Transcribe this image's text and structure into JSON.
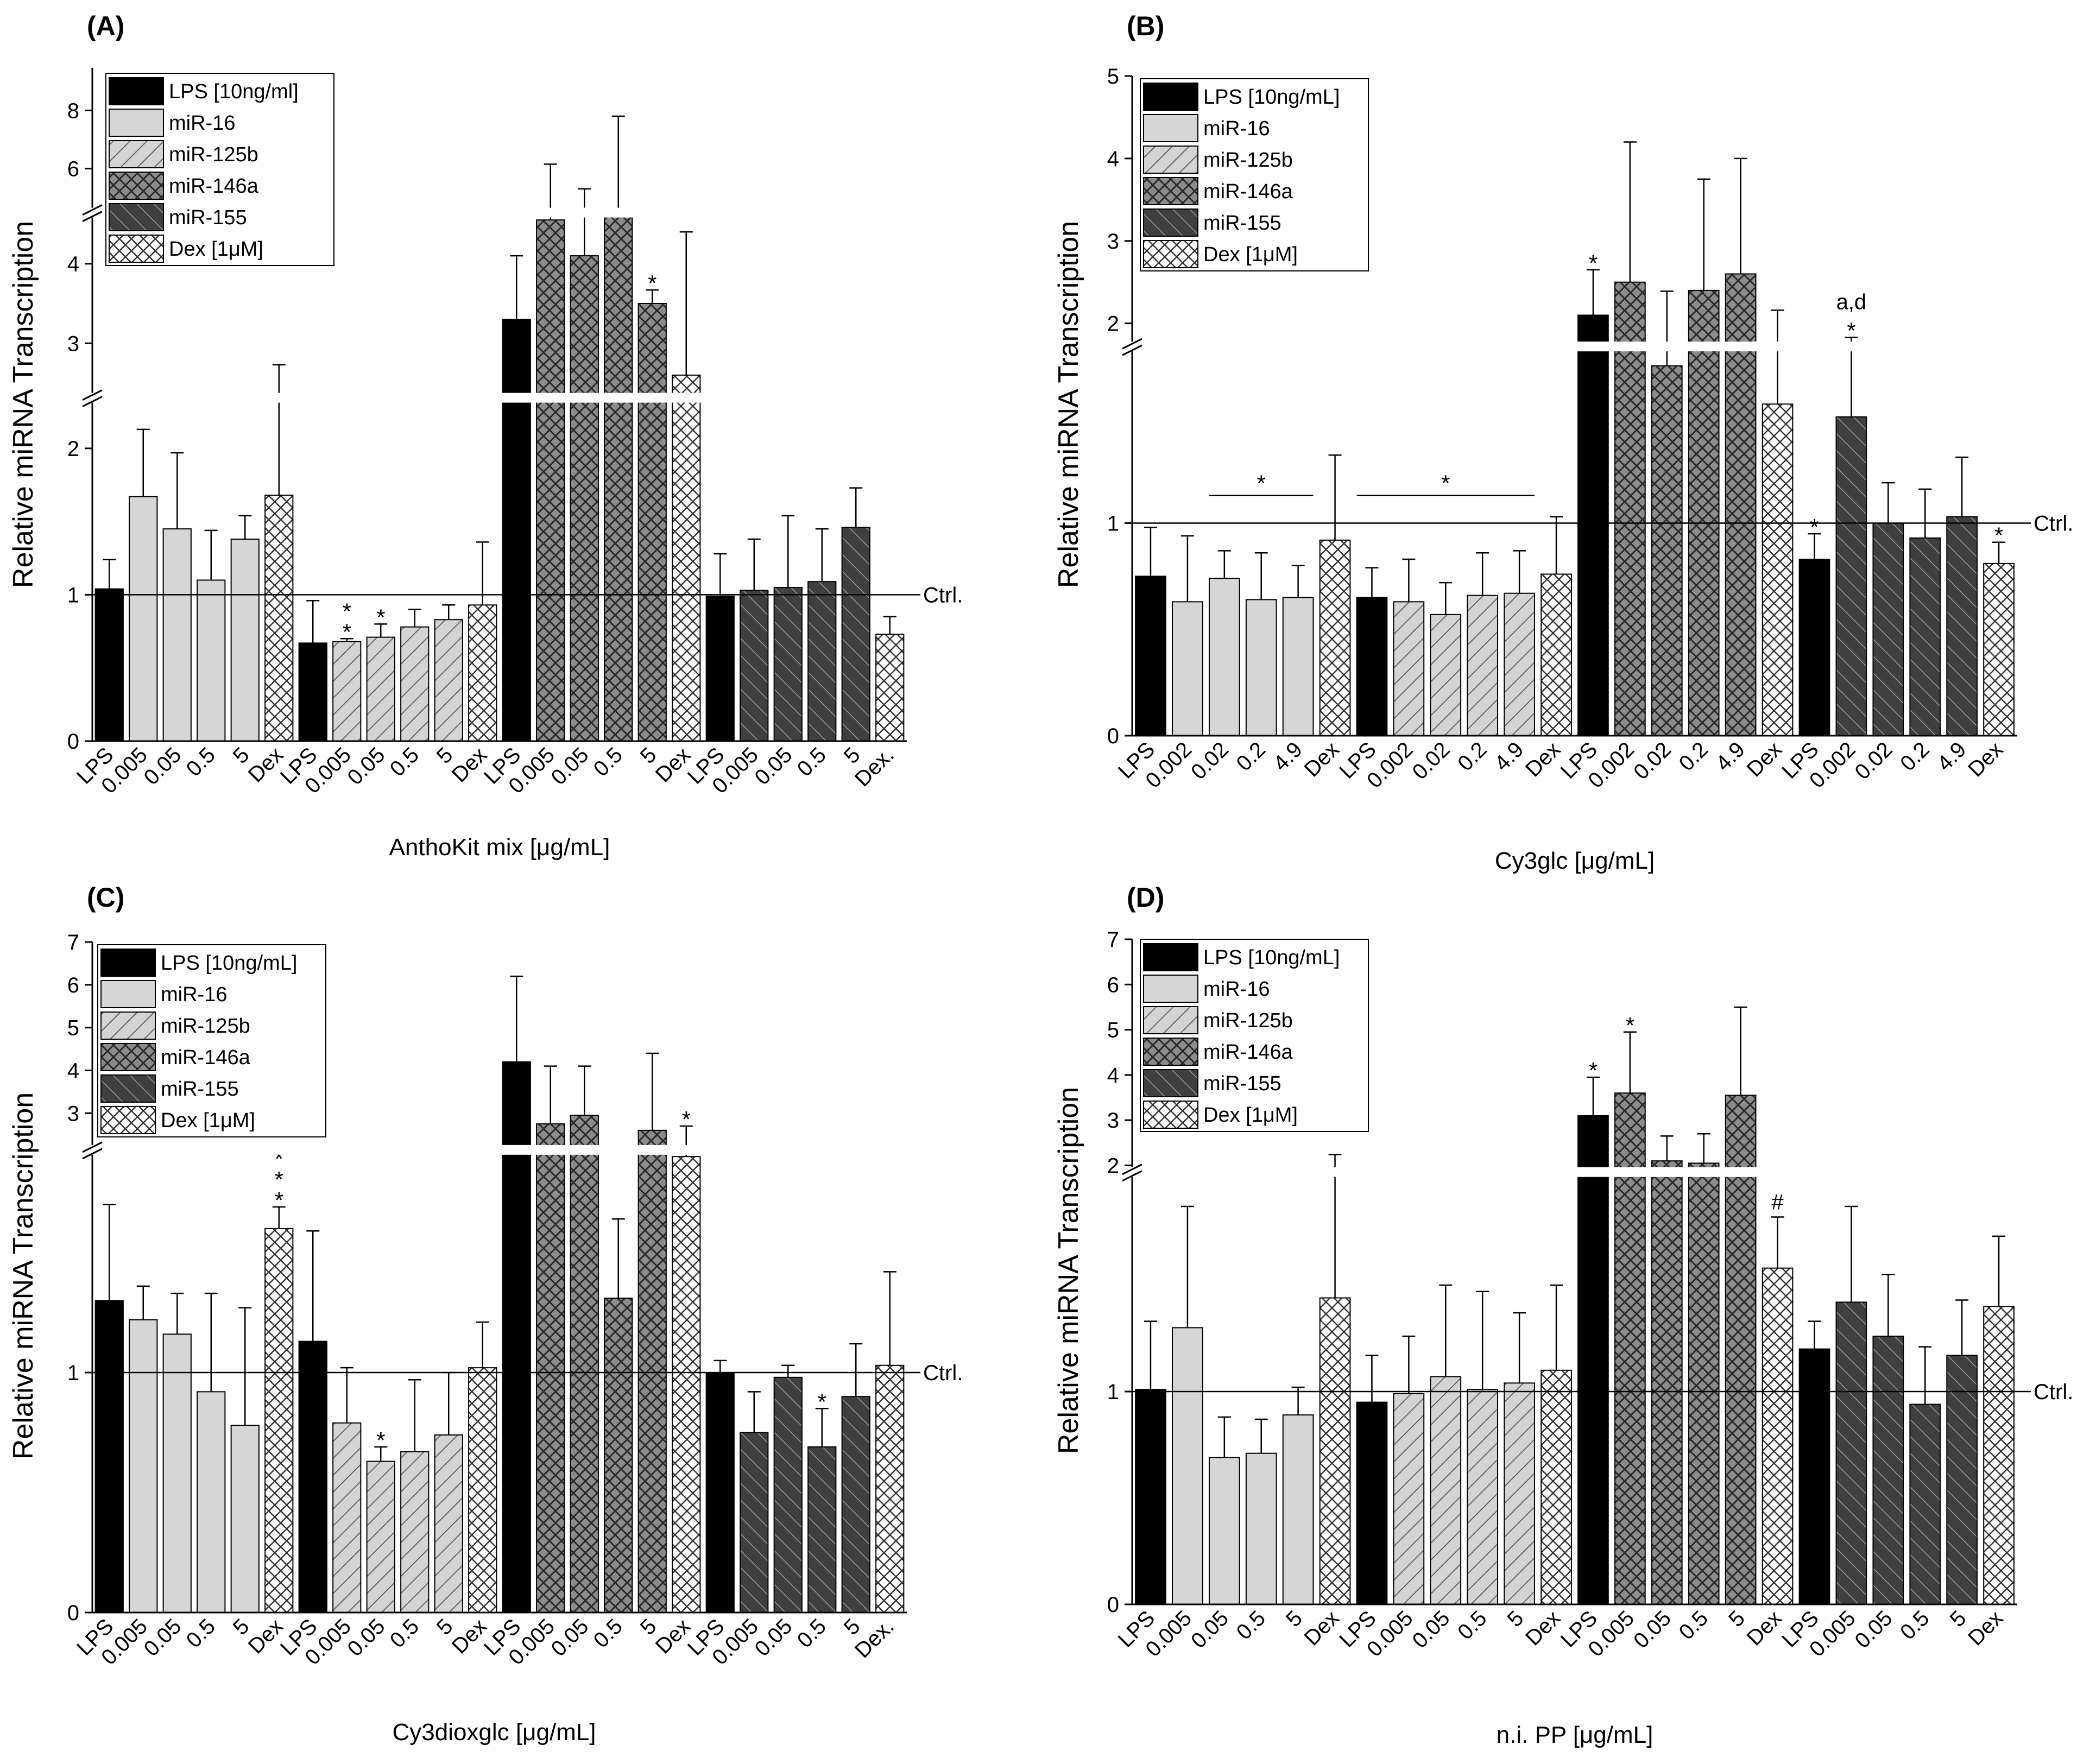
{
  "figure": {
    "legend_labels_panel_A": [
      "LPS [10ng/ml]",
      "miR-16",
      "miR-125b",
      "miR-146a",
      "miR-155",
      "Dex [1μM]"
    ],
    "legend_labels": [
      "LPS [10ng/mL]",
      "miR-16",
      "miR-125b",
      "miR-146a",
      "miR-155",
      "Dex [1μM]"
    ],
    "legend_patterns": [
      "solid-black",
      "solid-light-gray",
      "hatch-light-diagonal",
      "crosshatch-gray",
      "hatch-dark-diagonal",
      "crosshatch-white"
    ],
    "ctrl_label": "Ctrl.",
    "ylabel": "Relative miRNA Transcription",
    "colors": {
      "lps": "#000000",
      "mir16": "#d6d6d6",
      "mir125b": "#cfcfcf",
      "mir146a": "#8c8c8c",
      "mir155": "#3d3d3d",
      "dex": "#ffffff"
    }
  },
  "chart_data": [
    {
      "type": "bar",
      "panel_label": "(A)",
      "title": "",
      "xlabel": "AnthoKit mix [μg/mL]",
      "ylabel": "Relative miRNA Transcription",
      "reference_line": 1,
      "reference_label": "Ctrl.",
      "y_segments": [
        {
          "range": [
            0,
            2.3
          ],
          "ticks": [
            0,
            1,
            2
          ]
        },
        {
          "range": [
            2.4,
            4.6
          ],
          "ticks": [
            3,
            4
          ]
        },
        {
          "range": [
            4.6,
            9
          ],
          "ticks": [
            6,
            8
          ]
        }
      ],
      "groups": [
        {
          "name": "miR-16",
          "categories": [
            "LPS",
            "0.005",
            "0.05",
            "0.5",
            "5",
            "Dex"
          ],
          "patterns": [
            "lps",
            "mir16",
            "mir16",
            "mir16",
            "mir16",
            "dex"
          ],
          "values": [
            1.04,
            1.67,
            1.45,
            1.1,
            1.38,
            1.68
          ],
          "errors": [
            0.2,
            0.46,
            0.52,
            0.34,
            0.16,
            1.05
          ],
          "annotations": [
            "",
            "",
            "",
            "",
            "",
            ""
          ]
        },
        {
          "name": "miR-125b",
          "categories": [
            "LPS",
            "0.005",
            "0.05",
            "0.5",
            "5",
            "Dex"
          ],
          "patterns": [
            "lps",
            "mir125b",
            "mir125b",
            "mir125b",
            "mir125b",
            "dex"
          ],
          "values": [
            0.67,
            0.68,
            0.71,
            0.78,
            0.83,
            0.93
          ],
          "errors": [
            0.29,
            0.02,
            0.09,
            0.12,
            0.1,
            0.43
          ],
          "annotations": [
            "",
            "*\n*",
            "*",
            "",
            "",
            ""
          ]
        },
        {
          "name": "miR-146a",
          "categories": [
            "LPS",
            "0.005",
            "0.05",
            "0.5",
            "5",
            "Dex"
          ],
          "patterns": [
            "lps",
            "mir146a",
            "mir146a",
            "mir146a",
            "mir146a",
            "dex"
          ],
          "values": [
            3.3,
            4.55,
            4.1,
            4.6,
            3.5,
            2.6
          ],
          "errors": [
            0.8,
            1.6,
            1.2,
            3.2,
            0.17,
            1.8
          ],
          "annotations": [
            "",
            "",
            "",
            "",
            "*",
            ""
          ]
        },
        {
          "name": "miR-155",
          "categories": [
            "LPS",
            "0.005",
            "0.05",
            "0.5",
            "5",
            "Dex."
          ],
          "patterns": [
            "lps",
            "mir155",
            "mir155",
            "mir155",
            "mir155",
            "dex"
          ],
          "values": [
            0.99,
            1.03,
            1.05,
            1.09,
            1.46,
            0.73
          ],
          "errors": [
            0.29,
            0.35,
            0.49,
            0.36,
            0.27,
            0.12
          ],
          "annotations": [
            "",
            "",
            "",
            "",
            "",
            ""
          ]
        }
      ],
      "bracket_annotations": []
    },
    {
      "type": "bar",
      "panel_label": "(B)",
      "title": "",
      "xlabel": "Cy3glc [μg/mL]",
      "ylabel": "Relative miRNA Transcription",
      "reference_line": 1,
      "reference_label": "Ctrl.",
      "y_segments": [
        {
          "range": [
            0,
            1.8
          ],
          "ticks": [
            0,
            1
          ]
        },
        {
          "range": [
            1.8,
            5
          ],
          "ticks": [
            2,
            3,
            4,
            5
          ]
        }
      ],
      "groups": [
        {
          "name": "miR-16",
          "categories": [
            "LPS",
            "0.002",
            "0.02",
            "0.2",
            "4.9",
            "Dex"
          ],
          "patterns": [
            "lps",
            "mir16",
            "mir16",
            "mir16",
            "mir16",
            "dex"
          ],
          "values": [
            0.75,
            0.63,
            0.74,
            0.64,
            0.65,
            0.92
          ],
          "errors": [
            0.23,
            0.31,
            0.13,
            0.22,
            0.15,
            0.4
          ],
          "annotations": [
            "",
            "",
            "",
            "",
            "",
            ""
          ]
        },
        {
          "name": "miR-125b",
          "categories": [
            "LPS",
            "0.002",
            "0.02",
            "0.2",
            "4.9",
            "Dex"
          ],
          "patterns": [
            "lps",
            "mir125b",
            "mir125b",
            "mir125b",
            "mir125b",
            "dex"
          ],
          "values": [
            0.65,
            0.63,
            0.57,
            0.66,
            0.67,
            0.76
          ],
          "errors": [
            0.14,
            0.2,
            0.15,
            0.2,
            0.2,
            0.27
          ],
          "annotations": [
            "",
            "",
            "",
            "",
            "",
            ""
          ]
        },
        {
          "name": "miR-146a",
          "categories": [
            "LPS",
            "0.002",
            "0.02",
            "0.2",
            "4.9",
            "Dex"
          ],
          "patterns": [
            "lps",
            "mir146a",
            "mir146a",
            "mir146a",
            "mir146a",
            "dex"
          ],
          "values": [
            2.1,
            2.5,
            1.74,
            2.4,
            2.6,
            1.56
          ],
          "errors": [
            0.55,
            1.7,
            0.65,
            1.35,
            1.4,
            0.6
          ],
          "annotations": [
            "*",
            "",
            "",
            "",
            "",
            ""
          ]
        },
        {
          "name": "miR-155",
          "categories": [
            "LPS",
            "0.002",
            "0.02",
            "0.2",
            "4.9",
            "Dex"
          ],
          "patterns": [
            "lps",
            "mir155",
            "mir155",
            "mir155",
            "mir155",
            "dex"
          ],
          "values": [
            0.83,
            1.5,
            1.0,
            0.93,
            1.03,
            0.81
          ],
          "errors": [
            0.12,
            0.33,
            0.19,
            0.23,
            0.28,
            0.1
          ],
          "annotations": [
            "*",
            "a,d\n*",
            "",
            "",
            "",
            "*"
          ]
        }
      ],
      "bracket_annotations": [
        {
          "group": 0,
          "from": 2,
          "to": 4,
          "label": "*"
        },
        {
          "group": 1,
          "from": 0,
          "to": 4,
          "label": "*"
        }
      ]
    },
    {
      "type": "bar",
      "panel_label": "(C)",
      "title": "",
      "xlabel": "Cy3dioxglc [μg/mL]",
      "ylabel": "Relative miRNA Transcription",
      "reference_line": 1,
      "reference_label": "Ctrl.",
      "y_segments": [
        {
          "range": [
            0,
            1.9
          ],
          "ticks": [
            0,
            1
          ]
        },
        {
          "range": [
            2.3,
            7
          ],
          "ticks": [
            3,
            4,
            5,
            6,
            7
          ]
        }
      ],
      "groups": [
        {
          "name": "miR-16",
          "categories": [
            "LPS",
            "0.005",
            "0.05",
            "0.5",
            "5",
            "Dex"
          ],
          "patterns": [
            "lps",
            "mir16",
            "mir16",
            "mir16",
            "mir16",
            "dex"
          ],
          "values": [
            1.3,
            1.22,
            1.16,
            0.92,
            0.78,
            1.6
          ],
          "errors": [
            0.4,
            0.14,
            0.17,
            0.41,
            0.49,
            0.09
          ],
          "annotations": [
            "",
            "",
            "",
            "",
            "",
            "*\n*\n*"
          ]
        },
        {
          "name": "miR-125b",
          "categories": [
            "LPS",
            "0.005",
            "0.05",
            "0.5",
            "5",
            "Dex"
          ],
          "patterns": [
            "lps",
            "mir125b",
            "mir125b",
            "mir125b",
            "mir125b",
            "dex"
          ],
          "values": [
            1.13,
            0.79,
            0.63,
            0.67,
            0.74,
            1.02
          ],
          "errors": [
            0.46,
            0.23,
            0.06,
            0.3,
            0.26,
            0.19
          ],
          "annotations": [
            "",
            "",
            "*",
            "",
            "",
            ""
          ]
        },
        {
          "name": "miR-146a",
          "categories": [
            "LPS",
            "0.005",
            "0.05",
            "0.5",
            "5",
            "Dex"
          ],
          "patterns": [
            "lps",
            "mir146a",
            "mir146a",
            "mir146a",
            "mir146a",
            "dex"
          ],
          "values": [
            4.2,
            2.75,
            2.95,
            1.31,
            2.6,
            2.25
          ],
          "errors": [
            2.0,
            1.35,
            1.15,
            0.33,
            1.8,
            0.45
          ],
          "annotations": [
            "",
            "",
            "",
            "",
            "",
            "*"
          ]
        },
        {
          "name": "miR-155",
          "categories": [
            "LPS",
            "0.005",
            "0.05",
            "0.5",
            "5",
            "Dex."
          ],
          "patterns": [
            "lps",
            "mir155",
            "mir155",
            "mir155",
            "mir155",
            "dex"
          ],
          "values": [
            1.0,
            0.75,
            0.98,
            0.69,
            0.9,
            1.03
          ],
          "errors": [
            0.05,
            0.17,
            0.05,
            0.16,
            0.22,
            0.39
          ],
          "annotations": [
            "",
            "",
            "",
            "*",
            "",
            ""
          ]
        }
      ],
      "bracket_annotations": []
    },
    {
      "type": "bar",
      "panel_label": "(D)",
      "title": "",
      "xlabel": "n.i. PP [μg/mL]",
      "ylabel": "Relative miRNA Transcription",
      "reference_line": 1,
      "reference_label": "Ctrl.",
      "y_segments": [
        {
          "range": [
            0,
            2.0
          ],
          "ticks": [
            0,
            1
          ]
        },
        {
          "range": [
            2.0,
            7
          ],
          "ticks": [
            2,
            3,
            4,
            5,
            6,
            7
          ]
        }
      ],
      "groups": [
        {
          "name": "miR-16",
          "categories": [
            "LPS",
            "0.005",
            "0.05",
            "0.5",
            "5",
            "Dex"
          ],
          "patterns": [
            "lps",
            "mir16",
            "mir16",
            "mir16",
            "mir16",
            "dex"
          ],
          "values": [
            1.01,
            1.3,
            0.69,
            0.71,
            0.89,
            1.44
          ],
          "errors": [
            0.32,
            0.57,
            0.19,
            0.16,
            0.13,
            0.8
          ],
          "annotations": [
            "",
            "",
            "",
            "",
            "",
            ""
          ]
        },
        {
          "name": "miR-125b",
          "categories": [
            "LPS",
            "0.005",
            "0.05",
            "0.5",
            "5",
            "Dex"
          ],
          "patterns": [
            "lps",
            "mir125b",
            "mir125b",
            "mir125b",
            "mir125b",
            "dex"
          ],
          "values": [
            0.95,
            0.99,
            1.07,
            1.01,
            1.04,
            1.1
          ],
          "errors": [
            0.22,
            0.27,
            0.43,
            0.46,
            0.33,
            0.4
          ],
          "annotations": [
            "",
            "",
            "",
            "",
            "",
            ""
          ]
        },
        {
          "name": "miR-146a",
          "categories": [
            "LPS",
            "0.005",
            "0.05",
            "0.5",
            "5",
            "Dex"
          ],
          "patterns": [
            "lps",
            "mir146a",
            "mir146a",
            "mir146a",
            "mir146a",
            "dex"
          ],
          "values": [
            3.1,
            3.6,
            2.1,
            2.05,
            3.55,
            1.58
          ],
          "errors": [
            0.85,
            1.35,
            0.55,
            0.65,
            1.95,
            0.24
          ],
          "annotations": [
            "*",
            "*",
            "",
            "",
            "",
            "#"
          ]
        },
        {
          "name": "miR-155",
          "categories": [
            "LPS",
            "0.005",
            "0.05",
            "0.5",
            "5",
            "Dex"
          ],
          "patterns": [
            "lps",
            "mir155",
            "mir155",
            "mir155",
            "mir155",
            "dex"
          ],
          "values": [
            1.2,
            1.42,
            1.26,
            0.94,
            1.17,
            1.4
          ],
          "errors": [
            0.13,
            0.45,
            0.29,
            0.27,
            0.26,
            0.33
          ],
          "annotations": [
            "",
            "",
            "",
            "",
            "",
            ""
          ]
        }
      ],
      "bracket_annotations": []
    }
  ]
}
